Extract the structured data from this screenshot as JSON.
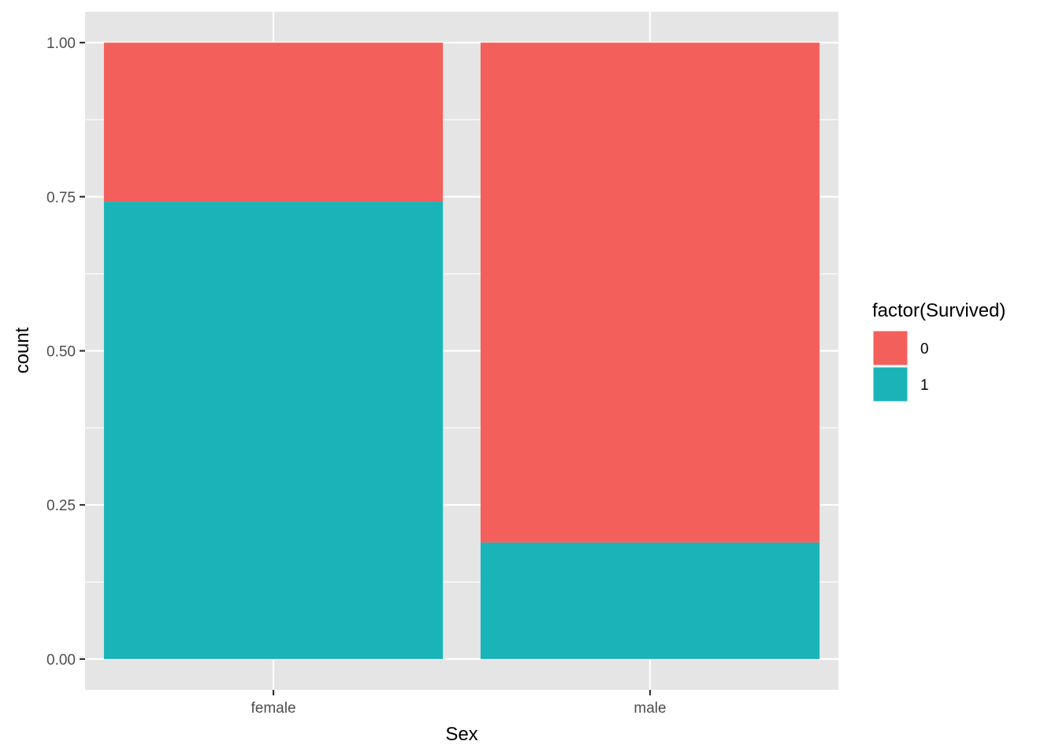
{
  "chart_data": {
    "type": "bar",
    "stacked": true,
    "categories": [
      "female",
      "male"
    ],
    "series": [
      {
        "name": "0",
        "color": "#F3605C",
        "values": [
          0.258,
          0.811
        ]
      },
      {
        "name": "1",
        "color": "#1AB4B8",
        "values": [
          0.742,
          0.189
        ]
      }
    ],
    "xlabel": "Sex",
    "ylabel": "count",
    "ylim": [
      -0.05,
      1.05
    ],
    "yticks": [
      0.0,
      0.25,
      0.5,
      0.75,
      1.0
    ],
    "ytick_labels": [
      "0.00",
      "0.25",
      "0.50",
      "0.75",
      "1.00"
    ],
    "grid": true,
    "legend": {
      "title": "factor(Survived)",
      "placement": "right",
      "entries": [
        "0",
        "1"
      ]
    },
    "colors": {
      "panel_background": "#E5E5E5",
      "grid": "#FFFFFF",
      "stack_order_bottom_first": [
        "1",
        "0"
      ]
    }
  }
}
